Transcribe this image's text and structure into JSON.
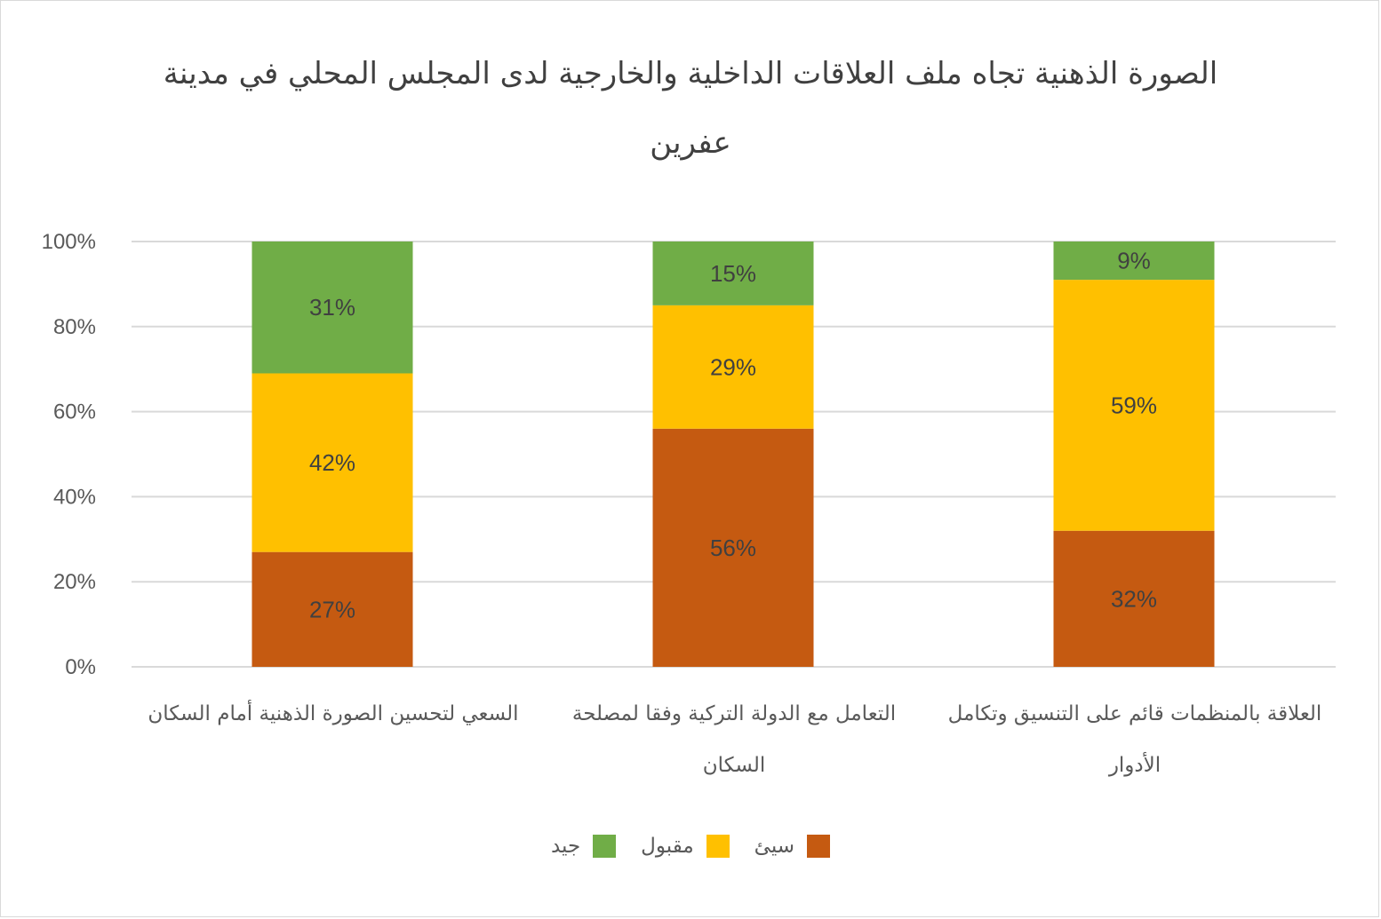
{
  "chart_data": {
    "type": "bar",
    "stacked": true,
    "percent": true,
    "title": "الصورة الذهنية تجاه ملف العلاقات الداخلية والخارجية لدى المجلس المحلي في مدينة عفرين",
    "xlabel": "",
    "ylabel": "",
    "ylim": [
      0,
      100
    ],
    "yticks": [
      "0%",
      "20%",
      "40%",
      "60%",
      "80%",
      "100%"
    ],
    "grid": true,
    "legend_position": "bottom",
    "categories": [
      "السعي لتحسين الصورة الذهنية أمام السكان",
      "التعامل مع الدولة التركية وفقا لمصلحة السكان",
      "العلاقة بالمنظمات قائم على التنسيق وتكامل الأدوار"
    ],
    "series": [
      {
        "name": "سيئ",
        "color": "#c55a11",
        "values": [
          27,
          56,
          32
        ],
        "labels": [
          "27%",
          "56%",
          "32%"
        ]
      },
      {
        "name": "مقبول",
        "color": "#ffc000",
        "values": [
          42,
          29,
          59
        ],
        "labels": [
          "42%",
          "29%",
          "59%"
        ]
      },
      {
        "name": "جيد",
        "color": "#70ad47",
        "values": [
          31,
          15,
          9
        ],
        "labels": [
          "31%",
          "15%",
          "9%"
        ]
      }
    ]
  }
}
